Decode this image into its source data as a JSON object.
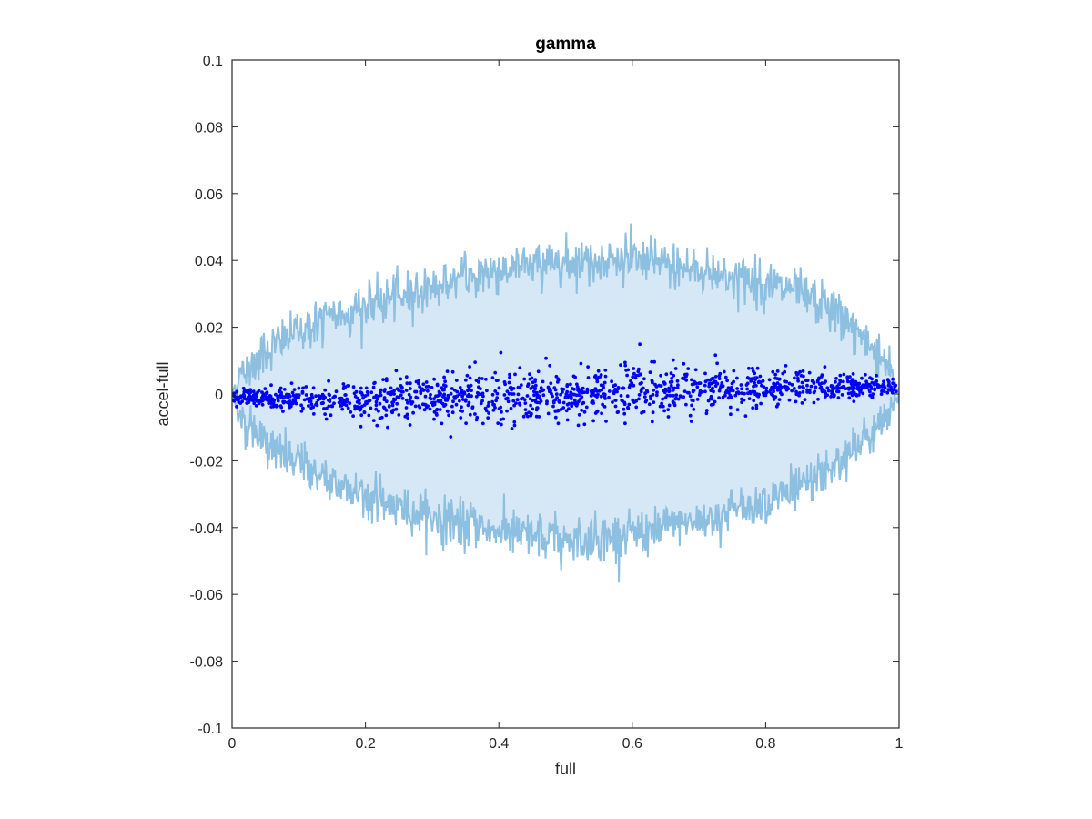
{
  "chart_data": {
    "type": "scatter",
    "title": "gamma",
    "xlabel": "full",
    "ylabel": "accel-full",
    "xlim": [
      0,
      1
    ],
    "ylim": [
      -0.1,
      0.1
    ],
    "x_ticks": [
      "0",
      "0.2",
      "0.4",
      "0.6",
      "0.8",
      "1"
    ],
    "y_ticks": [
      "0.1",
      "0.08",
      "0.06",
      "0.04",
      "0.02",
      "0",
      "-0.02",
      "-0.04",
      "-0.06",
      "-0.08",
      "-0.1"
    ],
    "grid": false,
    "colors": {
      "band_fill": "#d6e8f5",
      "band_edge": "#8cbfe0",
      "points": "#0000ff",
      "axes": "#262626"
    },
    "band": {
      "description_points_x": [
        0,
        0.01,
        0.03,
        0.05,
        0.1,
        0.15,
        0.2,
        0.25,
        0.3,
        0.35,
        0.4,
        0.45,
        0.5,
        0.55,
        0.6,
        0.65,
        0.7,
        0.75,
        0.8,
        0.85,
        0.9,
        0.95,
        0.98,
        1
      ],
      "upper_y": [
        0.0,
        0.005,
        0.009,
        0.013,
        0.019,
        0.023,
        0.026,
        0.029,
        0.032,
        0.035,
        0.037,
        0.039,
        0.04,
        0.04,
        0.04,
        0.039,
        0.037,
        0.035,
        0.033,
        0.03,
        0.025,
        0.016,
        0.01,
        0.0
      ],
      "lower_y": [
        0.0,
        -0.006,
        -0.011,
        -0.015,
        -0.021,
        -0.026,
        -0.03,
        -0.034,
        -0.037,
        -0.039,
        -0.041,
        -0.043,
        -0.044,
        -0.043,
        -0.042,
        -0.04,
        -0.038,
        -0.035,
        -0.032,
        -0.028,
        -0.022,
        -0.014,
        -0.009,
        0.0
      ]
    },
    "series": [
      {
        "points_trend": {
          "x": [
            0,
            0.2,
            0.4,
            0.5,
            0.6,
            0.8,
            1
          ],
          "y_center": [
            -0.001,
            -0.002,
            -0.001,
            0.0,
            0.001,
            0.002,
            0.002
          ],
          "y_spread": [
            0.001,
            0.003,
            0.004,
            0.004,
            0.004,
            0.003,
            0.001
          ]
        },
        "count": 1400
      }
    ]
  }
}
